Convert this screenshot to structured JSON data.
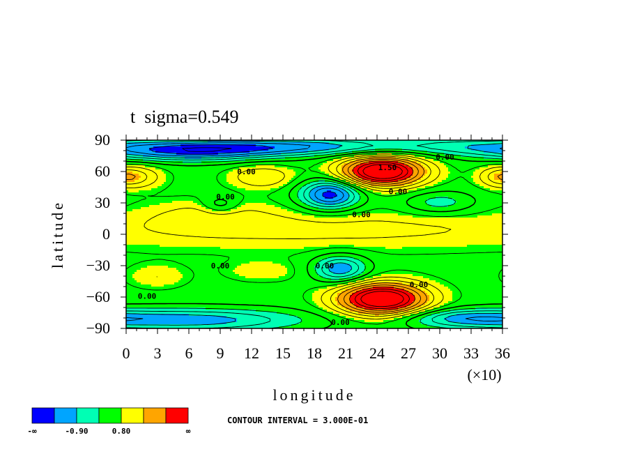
{
  "chart_data": {
    "type": "heatmap",
    "subtype": "filled-contour",
    "title": "t  sigma=0.549",
    "xlabel": "longitude",
    "ylabel": "latitude",
    "x_multiplier_label": "(×10)",
    "xlim": [
      0,
      36
    ],
    "ylim": [
      -90,
      90
    ],
    "x_ticks": [
      0,
      3,
      6,
      9,
      12,
      15,
      18,
      21,
      24,
      27,
      30,
      33,
      36
    ],
    "y_ticks": [
      90,
      60,
      30,
      0,
      -30,
      -60,
      -90
    ],
    "contour_interval_text": "CONTOUR INTERVAL = 3.000E-01",
    "contour_labels": [
      {
        "text": "0.00",
        "x": 11.5,
        "y": 60
      },
      {
        "text": "0.00",
        "x": 9.5,
        "y": 36
      },
      {
        "text": "0.00",
        "x": 30.5,
        "y": 74
      },
      {
        "text": "0.00",
        "x": 26,
        "y": 41
      },
      {
        "text": "0.00",
        "x": 22.5,
        "y": 19
      },
      {
        "text": "1.50",
        "x": 25,
        "y": 64
      },
      {
        "text": "0.00",
        "x": 9,
        "y": -30
      },
      {
        "text": "0.00",
        "x": 19,
        "y": -30
      },
      {
        "text": "0.00",
        "x": 28,
        "y": -48
      },
      {
        "text": "0.00",
        "x": 2,
        "y": -59
      },
      {
        "text": "0.00",
        "x": 20.5,
        "y": -84
      }
    ],
    "legend": {
      "colors": [
        "#0000ff",
        "#00a5ff",
        "#00ffb4",
        "#00ff00",
        "#ffff00",
        "#ffa500",
        "#ff0000"
      ],
      "labels": [
        "-∞",
        "-0.90",
        "0.80",
        "∞"
      ]
    },
    "field": {
      "base": 0.2,
      "features": [
        {
          "lon": 245,
          "lat": 60,
          "amp": 2.8,
          "slon": 28,
          "slat": 10
        },
        {
          "lon": 245,
          "lat": -62,
          "amp": 2.8,
          "slon": 30,
          "slat": 11
        },
        {
          "lon": 195,
          "lat": 38,
          "amp": -1.9,
          "slon": 20,
          "slat": 10
        },
        {
          "lon": 205,
          "lat": -33,
          "amp": -1.4,
          "slon": 18,
          "slat": 9
        },
        {
          "lon": 130,
          "lat": 55,
          "amp": 0.7,
          "slon": 22,
          "slat": 8
        },
        {
          "lon": 10,
          "lat": 55,
          "amp": 0.7,
          "slon": 18,
          "slat": 8
        },
        {
          "lon": 355,
          "lat": 55,
          "amp": 0.5,
          "slon": 14,
          "slat": 7
        },
        {
          "lon": 60,
          "lat": 80,
          "amp": -1.7,
          "slon": 60,
          "slat": 7
        },
        {
          "lon": 170,
          "lat": 84,
          "amp": -1.2,
          "slon": 70,
          "slat": 6
        },
        {
          "lon": 320,
          "lat": 85,
          "amp": -0.6,
          "slon": 50,
          "slat": 6
        },
        {
          "lon": 60,
          "lat": -82,
          "amp": -1.3,
          "slon": 80,
          "slat": 8
        },
        {
          "lon": 320,
          "lat": -80,
          "amp": -0.8,
          "slon": 40,
          "slat": 6
        },
        {
          "lon": 180,
          "lat": 5,
          "amp": 0.5,
          "slon": 200,
          "slat": 14
        },
        {
          "lon": 80,
          "lat": 20,
          "amp": 0.35,
          "slon": 40,
          "slat": 10
        },
        {
          "lon": 300,
          "lat": 30,
          "amp": -0.7,
          "slon": 25,
          "slat": 8
        },
        {
          "lon": 90,
          "lat": 28,
          "amp": -0.6,
          "slon": 12,
          "slat": 6
        },
        {
          "lon": 30,
          "lat": -40,
          "amp": 0.4,
          "slon": 20,
          "slat": 8
        },
        {
          "lon": 130,
          "lat": -35,
          "amp": 0.35,
          "slon": 25,
          "slat": 7
        }
      ]
    }
  }
}
